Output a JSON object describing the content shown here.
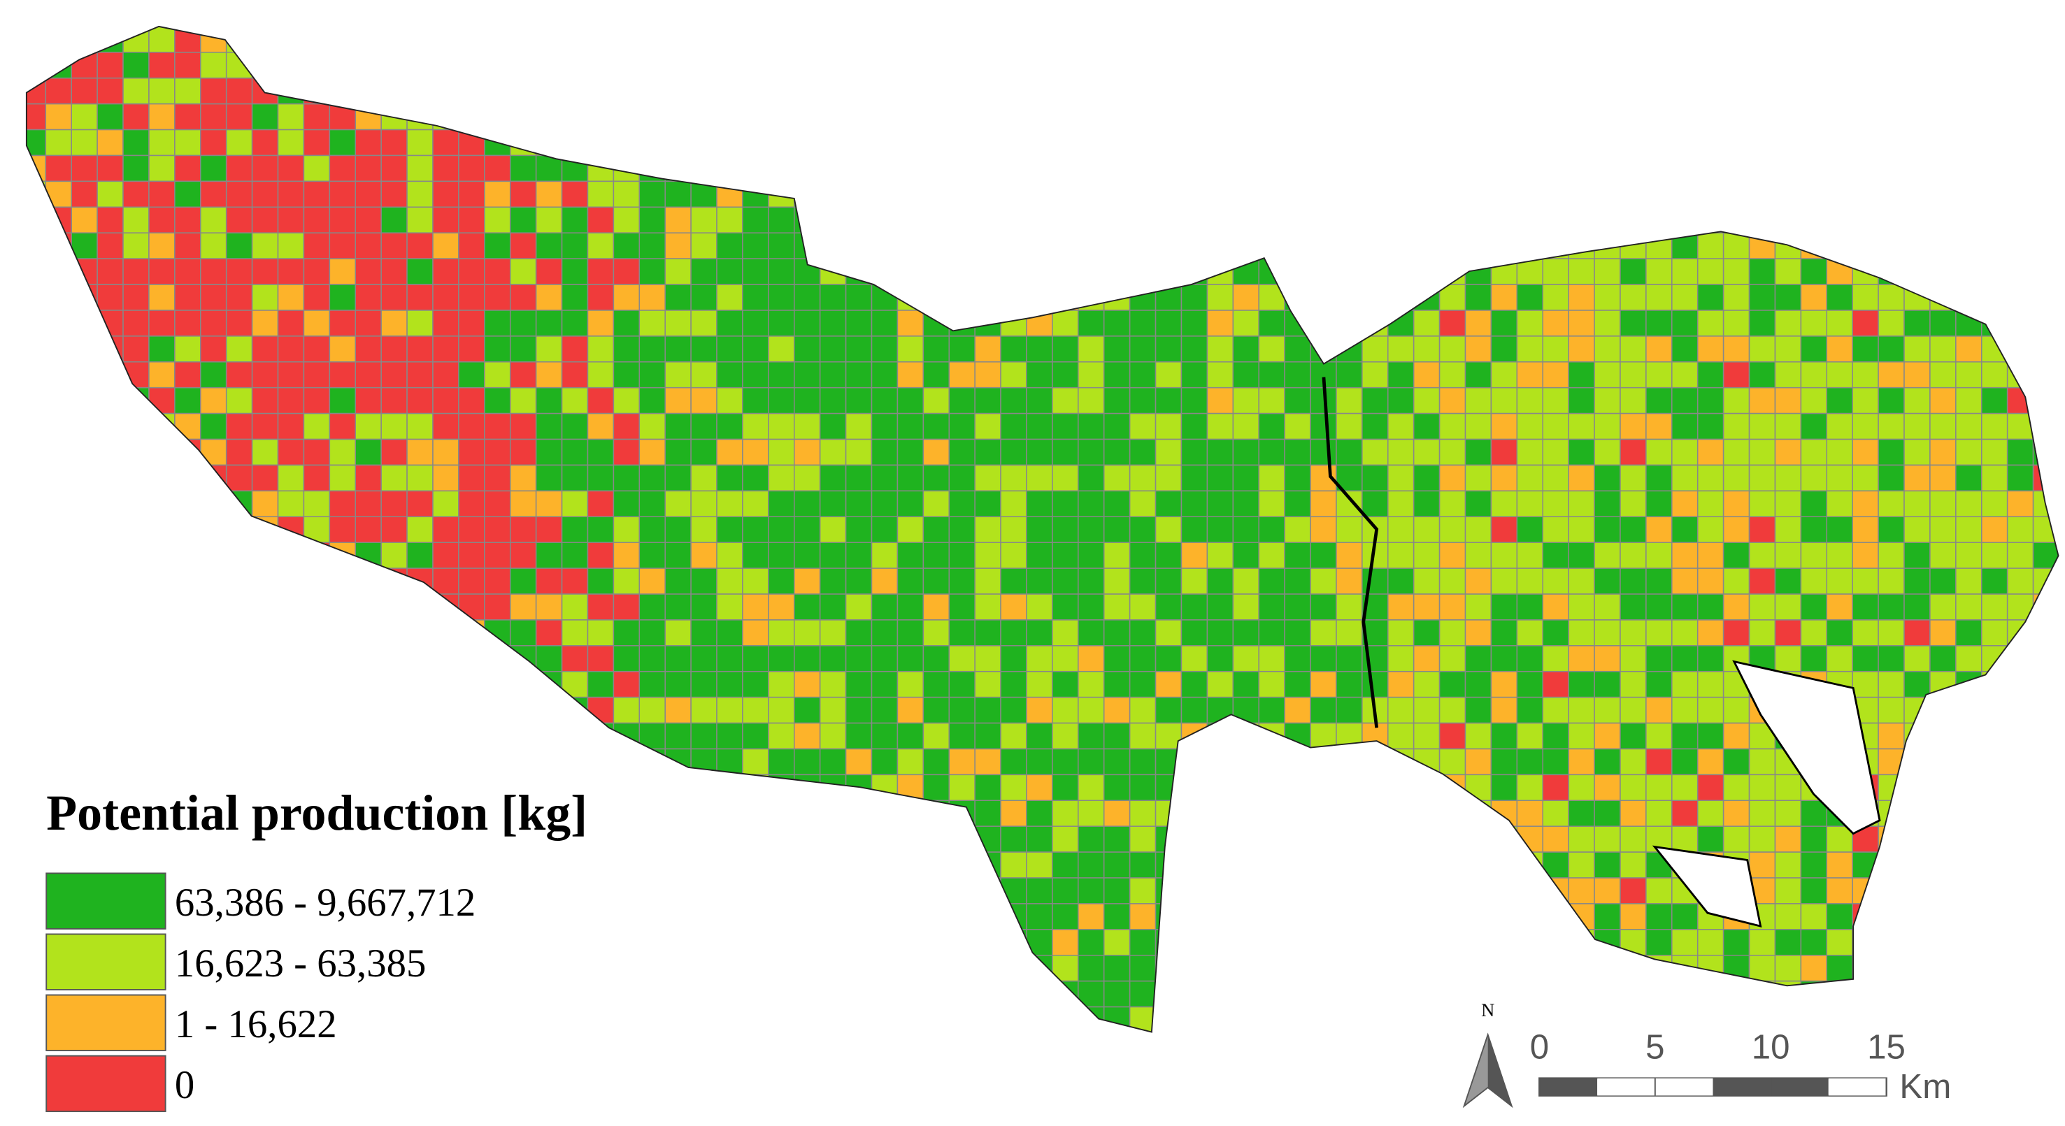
{
  "legend": {
    "title": "Potential production [kg]",
    "items": [
      {
        "label": "63,386 - 9,667,712",
        "color": "#1fb31f"
      },
      {
        "label": "16,623 - 63,385",
        "color": "#b2e31c"
      },
      {
        "label": "1 - 16,622",
        "color": "#fdb32a"
      },
      {
        "label": "0",
        "color": "#f03b3b"
      }
    ]
  },
  "scale_bar": {
    "ticks": [
      0,
      5,
      10,
      15
    ],
    "unit": "Km"
  },
  "north_arrow": {
    "label": "N"
  }
}
